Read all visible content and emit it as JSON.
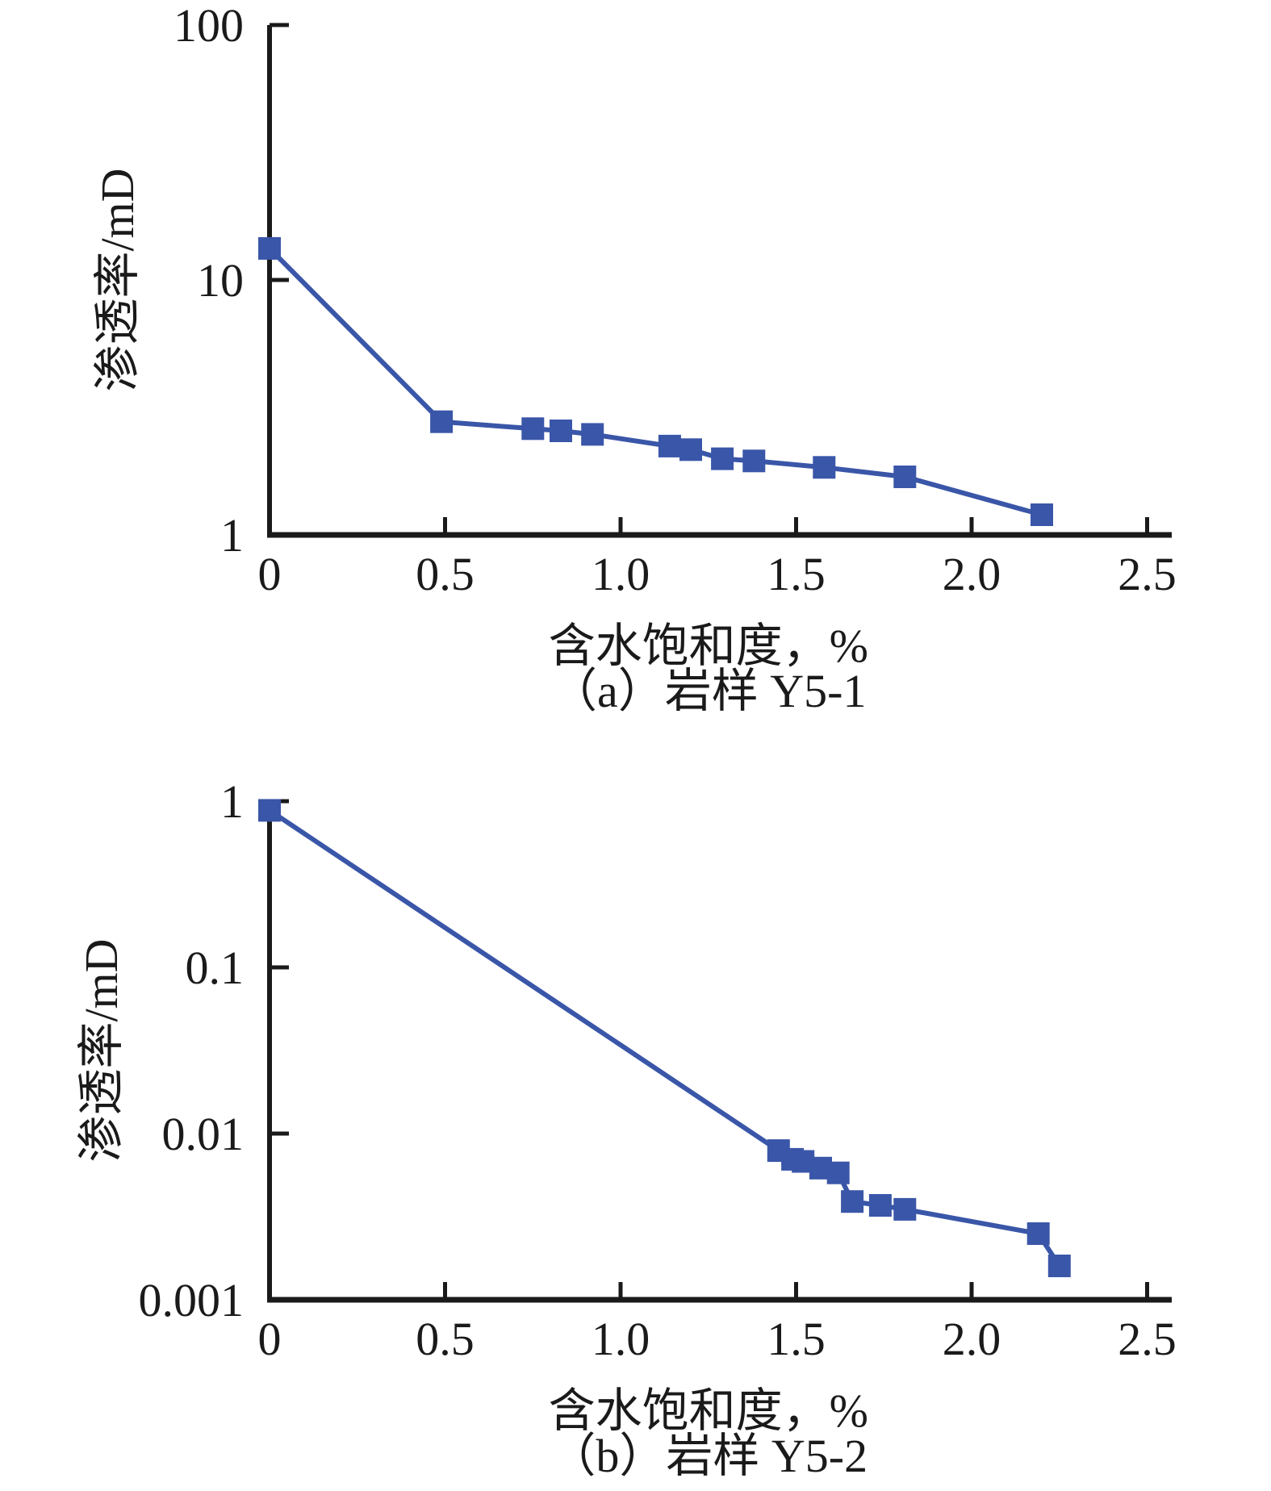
{
  "page": {
    "background": "#ffffff",
    "axis_color": "#1a1a1a",
    "text_color": "#1a1a1a"
  },
  "chart_data": [
    {
      "type": "line",
      "caption": "（a）岩样 Y5-1",
      "xlabel": "含水饱和度，%",
      "ylabel": "渗透率/mD",
      "x": [
        0,
        0.49,
        0.75,
        0.83,
        0.92,
        1.14,
        1.2,
        1.29,
        1.38,
        1.58,
        1.81,
        2.2
      ],
      "y": [
        13.3,
        2.78,
        2.61,
        2.56,
        2.48,
        2.23,
        2.16,
        1.99,
        1.95,
        1.84,
        1.69,
        1.2
      ],
      "xlim": [
        0,
        2.5
      ],
      "x_ticks": [
        "0",
        "0.5",
        "1.0",
        "1.5",
        "2.0",
        "2.5"
      ],
      "y_scale": "log",
      "ylim": [
        1,
        100
      ],
      "y_ticks": [
        "1",
        "10",
        "100"
      ],
      "marker": "square",
      "marker_color": "#3A56A8",
      "line_color": "#3A56A8",
      "grid": false,
      "legend": "none"
    },
    {
      "type": "line",
      "caption": "（b）岩样 Y5-2",
      "xlabel": "含水饱和度，%",
      "ylabel": "渗透率/mD",
      "x": [
        0,
        1.45,
        1.49,
        1.52,
        1.57,
        1.62,
        1.66,
        1.74,
        1.81,
        2.19,
        2.25
      ],
      "y": [
        0.88,
        0.0079,
        0.007,
        0.0068,
        0.0062,
        0.0058,
        0.0039,
        0.0037,
        0.0035,
        0.0025,
        0.0016
      ],
      "xlim": [
        0,
        2.5
      ],
      "x_ticks": [
        "0",
        "0.5",
        "1.0",
        "1.5",
        "2.0",
        "2.5"
      ],
      "y_scale": "log",
      "ylim": [
        0.001,
        1
      ],
      "y_ticks": [
        "0.001",
        "0.01",
        "0.1",
        "1"
      ],
      "marker": "square",
      "marker_color": "#3A56A8",
      "line_color": "#3A56A8",
      "grid": false,
      "legend": "none"
    }
  ]
}
